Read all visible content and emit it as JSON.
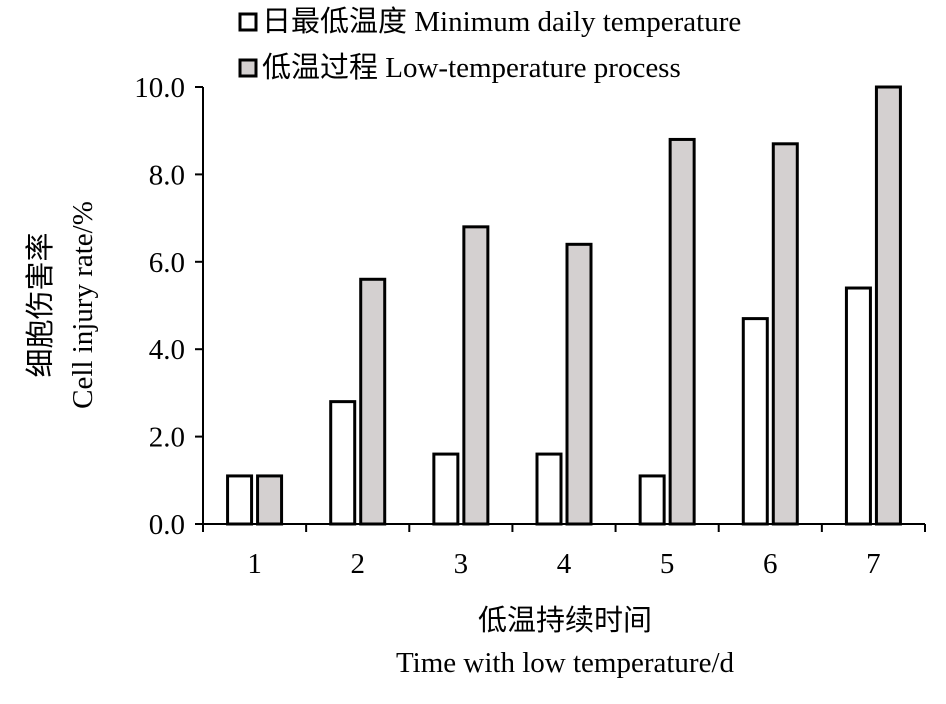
{
  "chart_data": {
    "type": "bar",
    "categories": [
      "1",
      "2",
      "3",
      "4",
      "5",
      "6",
      "7"
    ],
    "series": [
      {
        "name": "日最低温度 Minimum daily temperature",
        "values": [
          1.1,
          2.8,
          1.6,
          1.6,
          1.1,
          4.7,
          5.4
        ],
        "color": "#ffffff"
      },
      {
        "name": "低温过程 Low-temperature process",
        "values": [
          1.1,
          5.6,
          6.8,
          6.4,
          8.8,
          8.7,
          10.0
        ],
        "color": "#d4d0d0"
      }
    ],
    "ylim": [
      0,
      10
    ],
    "yticks": [
      "0.0",
      "2.0",
      "4.0",
      "6.0",
      "8.0",
      "10.0"
    ],
    "ylabel": [
      "细胞伤害率",
      "Cell injury rate/%"
    ],
    "xlabel": [
      "低温持续时间",
      "Time with low temperature/d"
    ],
    "legend_position": "top",
    "grid": false,
    "bar_stroke": "#000000"
  }
}
